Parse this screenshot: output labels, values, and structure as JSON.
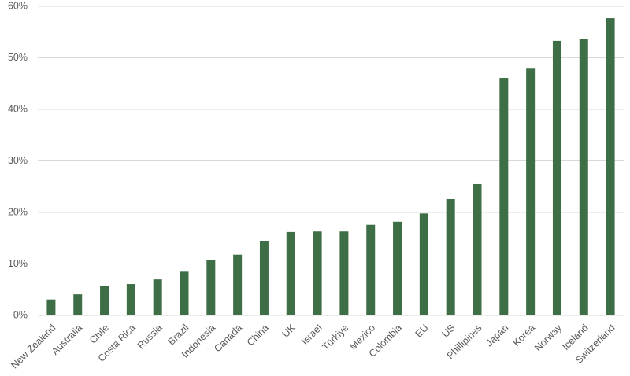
{
  "chart_data": {
    "type": "bar",
    "categories": [
      "New Zealand",
      "Australia",
      "Chile",
      "Costa Rica",
      "Russia",
      "Brazil",
      "Indonesia",
      "Canada",
      "China",
      "UK",
      "Israel",
      "Türkiye",
      "Mexico",
      "Colombia",
      "EU",
      "US",
      "Phillipines",
      "Japan",
      "Korea",
      "Norway",
      "Iceland",
      "Switzerland"
    ],
    "values": [
      3.1,
      4.1,
      5.8,
      6.1,
      7.0,
      8.5,
      10.7,
      11.8,
      14.5,
      16.2,
      16.3,
      16.3,
      17.6,
      18.2,
      19.8,
      22.6,
      25.5,
      46.1,
      47.9,
      53.3,
      53.6,
      57.7
    ],
    "color": "#3e6e45",
    "ylim": [
      0,
      60
    ],
    "yticks": [
      {
        "value": 0,
        "label": "0%"
      },
      {
        "value": 10,
        "label": "10%"
      },
      {
        "value": 20,
        "label": "20%"
      },
      {
        "value": 30,
        "label": "30%"
      },
      {
        "value": 40,
        "label": "40%"
      },
      {
        "value": 50,
        "label": "50%"
      },
      {
        "value": 60,
        "label": "60%"
      }
    ],
    "grid": true
  }
}
